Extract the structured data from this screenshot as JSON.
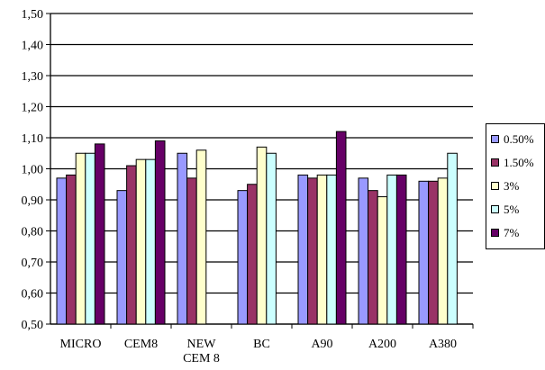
{
  "chart_data": {
    "type": "bar",
    "categories": [
      "MICRO",
      "CEM8",
      "NEW\nCEM 8",
      "BC",
      "A90",
      "A200",
      "A380"
    ],
    "category_labels": [
      [
        "MICRO"
      ],
      [
        "CEM8"
      ],
      [
        "NEW",
        "CEM 8"
      ],
      [
        "BC"
      ],
      [
        "A90"
      ],
      [
        "A200"
      ],
      [
        "A380"
      ]
    ],
    "series": [
      {
        "name": "0.50%",
        "color": "#9999FF",
        "values": [
          0.97,
          0.93,
          1.05,
          0.93,
          0.98,
          0.97,
          0.96
        ]
      },
      {
        "name": "1.50%",
        "color": "#993366",
        "values": [
          0.98,
          1.01,
          0.97,
          0.95,
          0.97,
          0.93,
          0.96
        ]
      },
      {
        "name": "3%",
        "color": "#FFFFCC",
        "values": [
          1.05,
          1.03,
          1.06,
          1.07,
          0.98,
          0.91,
          0.97
        ]
      },
      {
        "name": "5%",
        "color": "#CCFFFF",
        "values": [
          1.05,
          1.03,
          null,
          1.05,
          0.98,
          0.98,
          1.05
        ]
      },
      {
        "name": "7%",
        "color": "#660066",
        "values": [
          1.08,
          1.09,
          null,
          null,
          1.12,
          0.98,
          null
        ]
      }
    ],
    "ylim": [
      0.5,
      1.5
    ],
    "yticks": [
      "0,50",
      "0,60",
      "0,70",
      "0,80",
      "0,90",
      "1,00",
      "1,10",
      "1,20",
      "1,30",
      "1,40",
      "1,50"
    ],
    "title": "",
    "xlabel": "",
    "ylabel": "",
    "grid": "horizontal",
    "legend_position": "right"
  }
}
